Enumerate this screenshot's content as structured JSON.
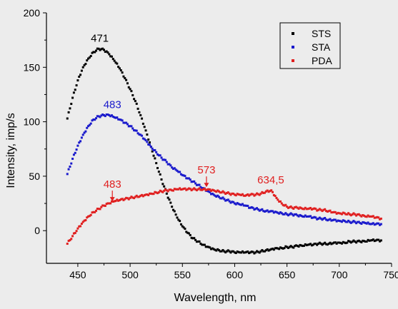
{
  "chart_data": {
    "type": "scatter",
    "title": "",
    "xlabel": "Wavelength, nm",
    "ylabel": "Intensity, imp/s",
    "xlim": [
      420,
      750
    ],
    "ylim": [
      -30,
      200
    ],
    "xticks": [
      450,
      500,
      550,
      600,
      650,
      700,
      750
    ],
    "yticks": [
      0,
      50,
      100,
      150,
      200
    ],
    "legend_position": "top-right",
    "grid": false,
    "series": [
      {
        "name": "STS",
        "color": "#000000",
        "x": [
          440,
          445,
          450,
          455,
          460,
          465,
          470,
          475,
          480,
          485,
          490,
          495,
          500,
          505,
          510,
          515,
          520,
          525,
          530,
          535,
          540,
          545,
          550,
          555,
          560,
          565,
          570,
          575,
          580,
          585,
          590,
          595,
          600,
          605,
          610,
          615,
          620,
          625,
          630,
          635,
          640,
          645,
          650,
          655,
          660,
          665,
          670,
          675,
          680,
          685,
          690,
          695,
          700,
          705,
          710,
          715,
          720,
          725,
          730,
          735,
          740
        ],
        "y": [
          103,
          122,
          138,
          150,
          158,
          164,
          167,
          166,
          162,
          156,
          149,
          140,
          130,
          119,
          106,
          92,
          77,
          62,
          47,
          34,
          22,
          12,
          4,
          -2,
          -7,
          -10,
          -13,
          -15,
          -17,
          -18,
          -19,
          -19,
          -20,
          -20,
          -20,
          -20,
          -20,
          -19,
          -18,
          -17,
          -16,
          -16,
          -15,
          -15,
          -14,
          -14,
          -13,
          -13,
          -12,
          -12,
          -12,
          -11,
          -11,
          -11,
          -10,
          -10,
          -10,
          -10,
          -9,
          -9,
          -9
        ]
      },
      {
        "name": "STA",
        "color": "#1a1acc",
        "x": [
          440,
          445,
          450,
          455,
          460,
          465,
          470,
          475,
          480,
          485,
          490,
          495,
          500,
          505,
          510,
          515,
          520,
          525,
          530,
          535,
          540,
          545,
          550,
          555,
          560,
          565,
          570,
          575,
          580,
          585,
          590,
          595,
          600,
          605,
          610,
          615,
          620,
          625,
          630,
          635,
          640,
          645,
          650,
          655,
          660,
          665,
          670,
          675,
          680,
          685,
          690,
          695,
          700,
          705,
          710,
          715,
          720,
          725,
          730,
          735,
          740
        ],
        "y": [
          52,
          66,
          78,
          88,
          96,
          102,
          105,
          106,
          106,
          104,
          102,
          99,
          96,
          92,
          88,
          83,
          77,
          72,
          67,
          63,
          58,
          55,
          51,
          48,
          45,
          42,
          39,
          36,
          33,
          31,
          29,
          27,
          25,
          24,
          23,
          21,
          20,
          19,
          18,
          18,
          17,
          16,
          15,
          15,
          14,
          13,
          13,
          12,
          11,
          11,
          10,
          10,
          9,
          9,
          8,
          8,
          7,
          7,
          6,
          6,
          6
        ]
      },
      {
        "name": "PDA",
        "color": "#e02020",
        "x": [
          440,
          445,
          450,
          455,
          460,
          465,
          470,
          475,
          480,
          485,
          490,
          495,
          500,
          505,
          510,
          515,
          520,
          525,
          530,
          535,
          540,
          545,
          550,
          555,
          560,
          565,
          570,
          575,
          580,
          585,
          590,
          595,
          600,
          605,
          610,
          615,
          620,
          625,
          630,
          635,
          640,
          645,
          650,
          655,
          660,
          665,
          670,
          675,
          680,
          685,
          690,
          695,
          700,
          705,
          710,
          715,
          720,
          725,
          730,
          735,
          740
        ],
        "y": [
          -12,
          -5,
          2,
          8,
          13,
          17,
          20,
          23,
          25,
          27,
          28,
          29,
          30,
          31,
          32,
          33,
          34,
          35,
          36,
          37,
          37,
          38,
          38,
          38,
          38,
          38,
          38,
          38,
          37,
          36,
          35,
          34,
          33,
          33,
          32,
          33,
          33,
          34,
          36,
          37,
          30,
          25,
          22,
          21,
          21,
          20,
          20,
          20,
          19,
          19,
          18,
          17,
          16,
          16,
          15,
          15,
          14,
          13,
          13,
          12,
          11
        ]
      }
    ],
    "annotations": [
      {
        "text": "471",
        "x": 471,
        "y": 167,
        "color": "#000000",
        "arrow": false
      },
      {
        "text": "483",
        "x": 483,
        "y": 106,
        "color": "#1a1acc",
        "arrow": false
      },
      {
        "text": "483",
        "x": 483,
        "y": 25,
        "color": "#e02020",
        "arrow": true
      },
      {
        "text": "573",
        "x": 573,
        "y": 38,
        "color": "#e02020",
        "arrow": true
      },
      {
        "text": "634,5",
        "x": 634.5,
        "y": 37,
        "color": "#e02020",
        "arrow": false
      }
    ]
  }
}
